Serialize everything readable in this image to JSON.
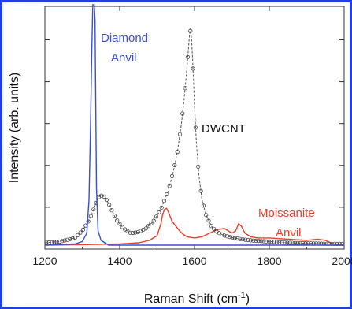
{
  "chart_data": {
    "type": "line",
    "xlabel": "Raman Shift (cm",
    "xlabel_sup": "-1",
    "xlabel_end": ")",
    "ylabel": "Intensity (arb. units)",
    "xlim": [
      1200,
      2000
    ],
    "ylim": [
      0,
      1.0
    ],
    "x_ticks": [
      1200,
      1400,
      1600,
      1800,
      2000
    ],
    "y_tick_labels_shown": false,
    "grid": false,
    "legend": "none",
    "colors": {
      "diamond": "#3a4fd0",
      "dwcnt": "#555555",
      "moissanite": "#e8402a",
      "frame": "#1f3fe0"
    },
    "annotations": [
      {
        "id": "diamond",
        "lines": [
          "Diamond",
          "Anvil"
        ]
      },
      {
        "id": "dwcnt",
        "lines": [
          "DWCNT"
        ]
      },
      {
        "id": "moissanite",
        "lines": [
          "Moissanite",
          "Anvil"
        ]
      }
    ],
    "series": [
      {
        "id": "diamond",
        "style": "line",
        "x": [
          1200,
          1280,
          1300,
          1312,
          1318,
          1322,
          1325,
          1328,
          1330,
          1332,
          1334,
          1336,
          1338,
          1342,
          1350,
          1370,
          1400,
          1500,
          1600,
          1700,
          1800,
          2000
        ],
        "y": [
          0.01,
          0.015,
          0.025,
          0.06,
          0.2,
          0.5,
          0.8,
          1.02,
          1.02,
          1.02,
          0.95,
          0.6,
          0.25,
          0.07,
          0.03,
          0.01,
          0.01,
          0.01,
          0.01,
          0.01,
          0.01,
          0.01
        ]
      },
      {
        "id": "dwcnt",
        "style": "line+markers",
        "x": [
          1200,
          1240,
          1280,
          1300,
          1320,
          1335,
          1345,
          1355,
          1365,
          1375,
          1390,
          1410,
          1430,
          1450,
          1470,
          1490,
          1510,
          1530,
          1545,
          1555,
          1565,
          1572,
          1578,
          1584,
          1588,
          1592,
          1595,
          1600,
          1605,
          1612,
          1620,
          1630,
          1645,
          1660,
          1680,
          1700,
          1720,
          1750,
          1800,
          1850,
          1900,
          1950,
          2000
        ],
        "y": [
          0.02,
          0.025,
          0.04,
          0.07,
          0.12,
          0.18,
          0.215,
          0.22,
          0.2,
          0.17,
          0.12,
          0.08,
          0.06,
          0.065,
          0.08,
          0.11,
          0.16,
          0.24,
          0.33,
          0.41,
          0.52,
          0.62,
          0.72,
          0.84,
          0.92,
          0.88,
          0.79,
          0.6,
          0.44,
          0.3,
          0.2,
          0.14,
          0.09,
          0.065,
          0.05,
          0.042,
          0.036,
          0.03,
          0.025,
          0.02,
          0.018,
          0.016,
          0.015
        ]
      },
      {
        "id": "moissanite",
        "style": "line",
        "x": [
          1200,
          1300,
          1400,
          1450,
          1480,
          1500,
          1510,
          1515,
          1520,
          1525,
          1530,
          1535,
          1540,
          1550,
          1560,
          1570,
          1580,
          1600,
          1620,
          1640,
          1660,
          1680,
          1690,
          1700,
          1710,
          1718,
          1725,
          1735,
          1750,
          1770,
          1800,
          1850,
          1900,
          1930,
          1950,
          1970,
          2000
        ],
        "y": [
          0.01,
          0.012,
          0.015,
          0.02,
          0.03,
          0.05,
          0.1,
          0.14,
          0.16,
          0.165,
          0.15,
          0.13,
          0.11,
          0.09,
          0.07,
          0.055,
          0.045,
          0.04,
          0.045,
          0.06,
          0.075,
          0.08,
          0.07,
          0.06,
          0.07,
          0.1,
          0.09,
          0.06,
          0.045,
          0.04,
          0.04,
          0.035,
          0.03,
          0.035,
          0.03,
          0.015,
          0.01
        ]
      }
    ]
  }
}
